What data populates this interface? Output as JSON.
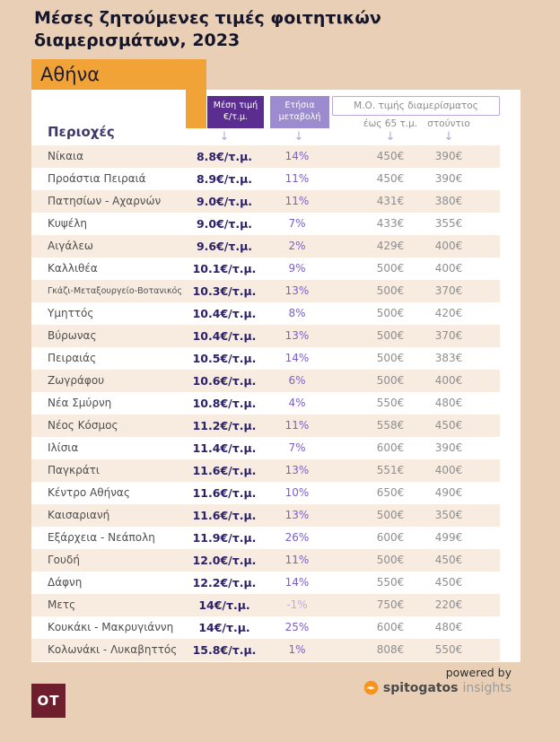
{
  "header": {
    "title": "Μέσες ζητούμενες τιμές φοιτητικών διαμερισμάτων, 2023",
    "city": "Αθήνα"
  },
  "table": {
    "columns": {
      "region": "Περιοχές",
      "price": "Μέση τιμή €/τ.μ.",
      "change": "Ετήσια μεταβολή",
      "avg_group": "Μ.Ο. τιμής διαμερίσματος",
      "sub_65": "έως 65 τ.μ.",
      "sub_studio": "στούντιο"
    }
  },
  "icons": {
    "down_arrow": "↓"
  },
  "footer": {
    "powered_by": "powered by",
    "brand": "spitogatos",
    "brand_suffix": "insights",
    "ot": "OT"
  },
  "colors": {
    "background": "#e9cfb6",
    "accent_orange": "#f2a338",
    "purple_dark": "#5c2d91",
    "purple_light": "#9c8bce",
    "row_alt": "#f8ece1",
    "price_text": "#2b2168",
    "change_text": "#7a60c6",
    "value_text": "#8f8f8f",
    "brand_orange": "#f7941d",
    "ot_maroon": "#6e1e2d"
  },
  "chart_data": {
    "type": "table",
    "title": "Μέσες ζητούμενες τιμές φοιτητικών διαμερισμάτων, 2023",
    "region_label": "Αθήνα",
    "columns": [
      "Περιοχές",
      "Μέση τιμή €/τ.μ.",
      "Ετήσια μεταβολή",
      "Μ.Ο. τιμής διαμερίσματος έως 65 τ.μ.",
      "Μ.Ο. τιμής διαμερίσματος στούντιο"
    ],
    "rows": [
      [
        "Νίκαια",
        "8.8€/τ.μ.",
        "14%",
        "450€",
        "390€"
      ],
      [
        "Προάστια Πειραιά",
        "8.9€/τ.μ.",
        "11%",
        "450€",
        "390€"
      ],
      [
        "Πατησίων - Αχαρνών",
        "9.0€/τ.μ.",
        "11%",
        "431€",
        "380€"
      ],
      [
        "Κυψέλη",
        "9.0€/τ.μ.",
        "7%",
        "433€",
        "355€"
      ],
      [
        "Αιγάλεω",
        "9.6€/τ.μ.",
        "2%",
        "429€",
        "400€"
      ],
      [
        "Καλλιθέα",
        "10.1€/τ.μ.",
        "9%",
        "500€",
        "400€"
      ],
      [
        "Γκάζι-Μεταξουργείο-Βοτανικός",
        "10.3€/τ.μ.",
        "13%",
        "500€",
        "370€"
      ],
      [
        "Υμηττός",
        "10.4€/τ.μ.",
        "8%",
        "500€",
        "420€"
      ],
      [
        "Βύρωνας",
        "10.4€/τ.μ.",
        "13%",
        "500€",
        "370€"
      ],
      [
        "Πειραιάς",
        "10.5€/τ.μ.",
        "14%",
        "500€",
        "383€"
      ],
      [
        "Ζωγράφου",
        "10.6€/τ.μ.",
        "6%",
        "500€",
        "400€"
      ],
      [
        "Νέα Σμύρνη",
        "10.8€/τ.μ.",
        "4%",
        "550€",
        "480€"
      ],
      [
        "Νέος Κόσμος",
        "11.2€/τ.μ.",
        "11%",
        "558€",
        "450€"
      ],
      [
        "Ιλίσια",
        "11.4€/τ.μ.",
        "7%",
        "600€",
        "390€"
      ],
      [
        "Παγκράτι",
        "11.6€/τ.μ.",
        "13%",
        "551€",
        "400€"
      ],
      [
        "Κέντρο Αθήνας",
        "11.6€/τ.μ.",
        "10%",
        "650€",
        "490€"
      ],
      [
        "Καισαριανή",
        "11.6€/τ.μ.",
        "13%",
        "500€",
        "350€"
      ],
      [
        "Εξάρχεια - Νεάπολη",
        "11.9€/τ.μ.",
        "26%",
        "600€",
        "499€"
      ],
      [
        "Γουδή",
        "12.0€/τ.μ.",
        "11%",
        "500€",
        "450€"
      ],
      [
        "Δάφνη",
        "12.2€/τ.μ.",
        "14%",
        "550€",
        "450€"
      ],
      [
        "Μετς",
        "14€/τ.μ.",
        "-1%",
        "750€",
        "220€"
      ],
      [
        "Κουκάκι - Μακρυγιάννη",
        "14€/τ.μ.",
        "25%",
        "600€",
        "480€"
      ],
      [
        "Κολωνάκι - Λυκαβηττός",
        "15.8€/τ.μ.",
        "1%",
        "808€",
        "550€"
      ]
    ]
  }
}
